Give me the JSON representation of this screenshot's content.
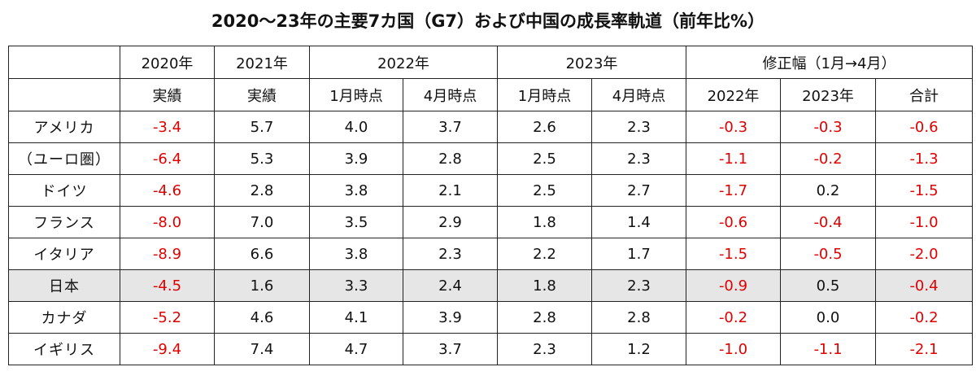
{
  "title": "2020〜23年の主要7カ国（G7）および中国の成長率軌道（前年比%）",
  "chart_data": {
    "type": "table",
    "title": "2020〜23年の主要7カ国（G7）および中国の成長率軌道（前年比%）",
    "header_top": [
      "2020年",
      "2021年",
      "2022年",
      "2023年",
      "修正幅（1月→4月）"
    ],
    "header_sub": [
      "実績",
      "実績",
      "1月時点",
      "4月時点",
      "1月時点",
      "4月時点",
      "2022年",
      "2023年",
      "合計"
    ],
    "highlight_row": "日本",
    "rows": [
      {
        "country": "アメリカ",
        "values": [
          "-3.4",
          "5.7",
          "4.0",
          "3.7",
          "2.6",
          "2.3",
          "-0.3",
          "-0.3",
          "-0.6"
        ]
      },
      {
        "country": "（ユーロ圏）",
        "values": [
          "-6.4",
          "5.3",
          "3.9",
          "2.8",
          "2.5",
          "2.3",
          "-1.1",
          "-0.2",
          "-1.3"
        ]
      },
      {
        "country": "ドイツ",
        "values": [
          "-4.6",
          "2.8",
          "3.8",
          "2.1",
          "2.5",
          "2.7",
          "-1.7",
          "0.2",
          "-1.5"
        ]
      },
      {
        "country": "フランス",
        "values": [
          "-8.0",
          "7.0",
          "3.5",
          "2.9",
          "1.8",
          "1.4",
          "-0.6",
          "-0.4",
          "-1.0"
        ]
      },
      {
        "country": "イタリア",
        "values": [
          "-8.9",
          "6.6",
          "3.8",
          "2.3",
          "2.2",
          "1.7",
          "-1.5",
          "-0.5",
          "-2.0"
        ]
      },
      {
        "country": "日本",
        "values": [
          "-4.5",
          "1.6",
          "3.3",
          "2.4",
          "1.8",
          "2.3",
          "-0.9",
          "0.5",
          "-0.4"
        ]
      },
      {
        "country": "カナダ",
        "values": [
          "-5.2",
          "4.6",
          "4.1",
          "3.9",
          "2.8",
          "2.8",
          "-0.2",
          "0.0",
          "-0.2"
        ]
      },
      {
        "country": "イギリス",
        "values": [
          "-9.4",
          "7.4",
          "4.7",
          "3.7",
          "2.3",
          "1.2",
          "-1.0",
          "-1.1",
          "-2.1"
        ]
      }
    ]
  },
  "colors": {
    "negative": "#e00000",
    "positive": "#111111",
    "highlight_bg": "#e6e6e6"
  }
}
